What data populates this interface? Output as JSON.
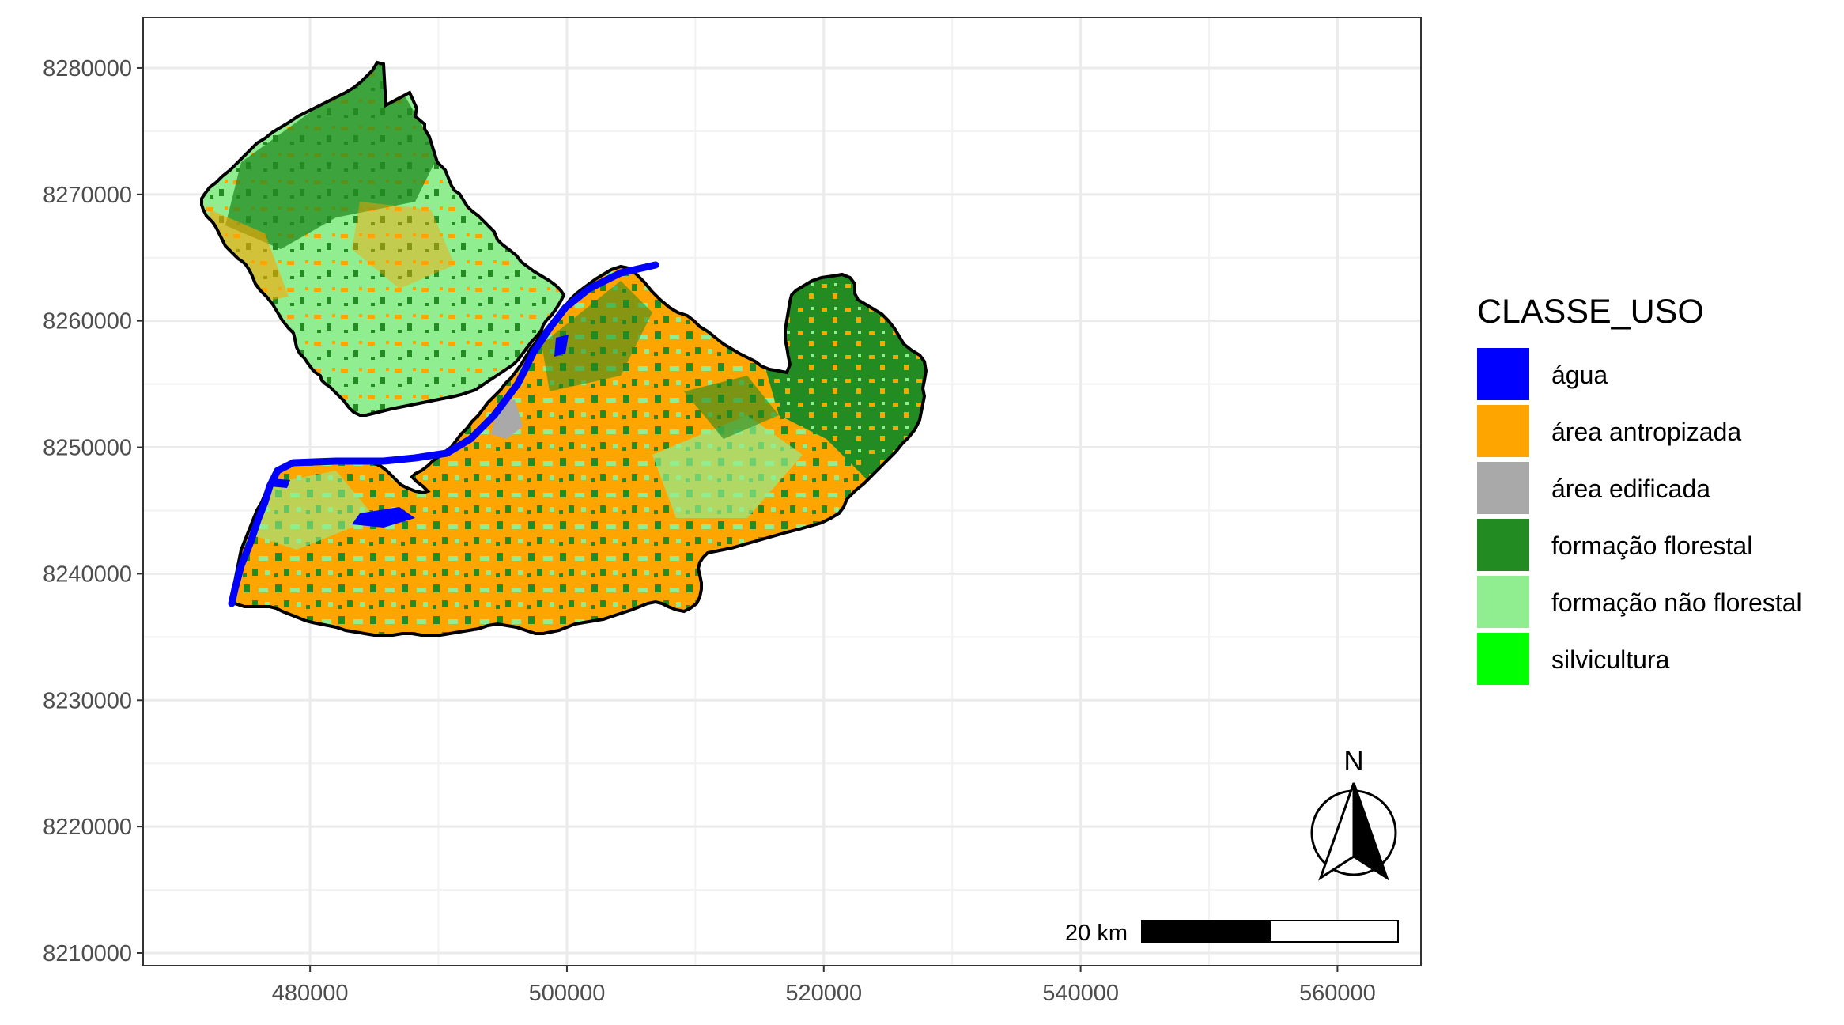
{
  "map": {
    "x_ticks": [
      "480000",
      "500000",
      "520000",
      "540000",
      "560000"
    ],
    "y_ticks": [
      "8280000",
      "8270000",
      "8260000",
      "8250000",
      "8240000",
      "8230000",
      "8220000",
      "8210000"
    ],
    "x_range": [
      467000,
      566500
    ],
    "y_range": [
      8209000,
      8284000
    ],
    "grid": true,
    "boundary_color": "#000000",
    "river_name": "",
    "classes_present": [
      "água",
      "área antropizada",
      "área edificada",
      "formação florestal",
      "formação não florestal"
    ]
  },
  "legend": {
    "title": "CLASSE_USO",
    "placement": "right",
    "items": [
      {
        "label": "água",
        "color": "#0000ff"
      },
      {
        "label": "área antropizada",
        "color": "#ffa500"
      },
      {
        "label": "área edificada",
        "color": "#a9a9a9"
      },
      {
        "label": "formação florestal",
        "color": "#228b22"
      },
      {
        "label": "formação não florestal",
        "color": "#90ee90"
      },
      {
        "label": "silvicultura",
        "color": "#00ff00"
      }
    ]
  },
  "scale_bar": {
    "label": "20 km",
    "segments": 2,
    "colors": [
      "#000000",
      "#ffffff"
    ]
  },
  "north_arrow": {
    "label": "N",
    "icon": "north-arrow-icon"
  }
}
